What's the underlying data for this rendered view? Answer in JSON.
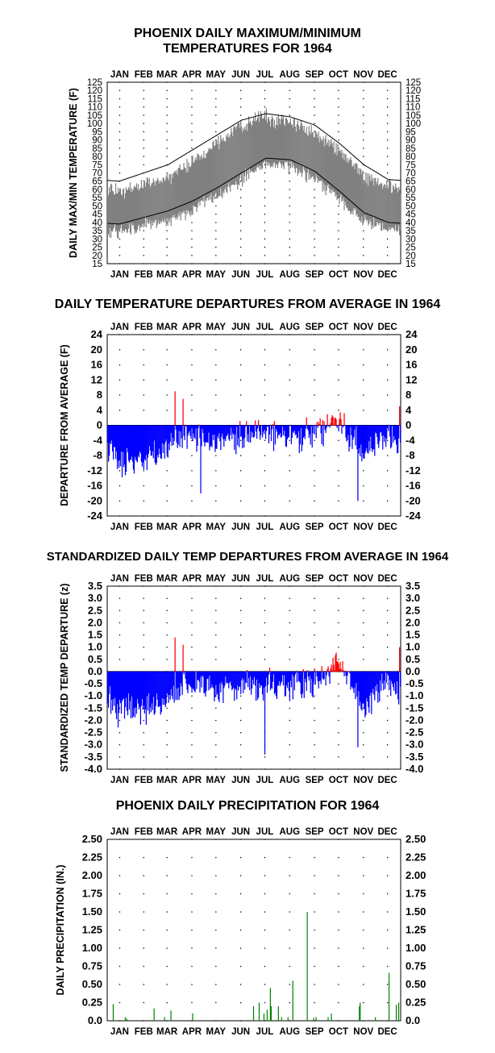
{
  "chart_data": [
    {
      "type": "area",
      "title": "PHOENIX DAILY MAXIMUM/MINIMUM",
      "subtitle": "TEMPERATURES FOR 1964",
      "ylabel": "DAILY MAX/MIN TEMPERATURE (F)",
      "months": [
        "JAN",
        "FEB",
        "MAR",
        "APR",
        "MAY",
        "JUN",
        "JUL",
        "AUG",
        "SEP",
        "OCT",
        "NOV",
        "DEC"
      ],
      "ylim": [
        15,
        125
      ],
      "yticks": [
        "15",
        "20",
        "25",
        "30",
        "35",
        "40",
        "45",
        "50",
        "55",
        "60",
        "65",
        "70",
        "75",
        "80",
        "85",
        "90",
        "95",
        "100",
        "105",
        "110",
        "115",
        "120",
        "125"
      ],
      "grid": "dotted",
      "normal_max_monthly": [
        65,
        70,
        75,
        84,
        93,
        102,
        106,
        104,
        99,
        88,
        75,
        66
      ],
      "normal_min_monthly": [
        39,
        43,
        47,
        53,
        61,
        70,
        79,
        78,
        71,
        59,
        46,
        40
      ],
      "actual_max_monthly": [
        58,
        63,
        67,
        77,
        87,
        100,
        104,
        101,
        94,
        84,
        68,
        62
      ],
      "actual_min_monthly": [
        34,
        38,
        41,
        48,
        56,
        66,
        76,
        74,
        67,
        54,
        40,
        36
      ],
      "series_colors": {
        "range": "#808080",
        "normal": "#000000"
      }
    },
    {
      "type": "bar",
      "title": "DAILY TEMPERATURE DEPARTURES FROM AVERAGE IN 1964",
      "ylabel": "DEPARTURE FROM AVERAGE (F)",
      "months": [
        "JAN",
        "FEB",
        "MAR",
        "APR",
        "MAY",
        "JUN",
        "JUL",
        "AUG",
        "SEP",
        "OCT",
        "NOV",
        "DEC"
      ],
      "ylim": [
        -24,
        24
      ],
      "yticks": [
        "-24",
        "-20",
        "-16",
        "-12",
        "-8",
        "-4",
        "0",
        "4",
        "8",
        "12",
        "16",
        "20",
        "24"
      ],
      "monthly_mean": [
        -9,
        -9,
        -6,
        -3,
        -5,
        -3,
        -2,
        -3,
        -2,
        1,
        -8,
        -2
      ],
      "extremes": [
        {
          "day": 85,
          "value": 9
        },
        {
          "day": 95,
          "value": 7
        },
        {
          "day": 117,
          "value": -18
        },
        {
          "day": 313,
          "value": -20
        },
        {
          "day": 365,
          "value": 5
        }
      ],
      "colors": {
        "positive": "#ff0000",
        "negative": "#0000ff"
      }
    },
    {
      "type": "bar",
      "title": "STANDARDIZED DAILY TEMP DEPARTURES FROM AVERAGE IN 1964",
      "ylabel": "STANDARDIZED TEMP DEPARTURE (z)",
      "months": [
        "JAN",
        "FEB",
        "MAR",
        "APR",
        "MAY",
        "JUN",
        "JUL",
        "AUG",
        "SEP",
        "OCT",
        "NOV",
        "DEC"
      ],
      "ylim": [
        -4.0,
        3.5
      ],
      "yticks": [
        "-4.0",
        "-3.5",
        "-3.0",
        "-2.5",
        "-2.0",
        "-1.5",
        "-1.0",
        "-0.5",
        "0.0",
        "0.5",
        "1.0",
        "1.5",
        "2.0",
        "2.5",
        "3.0",
        "3.5"
      ],
      "monthly_mean": [
        -1.6,
        -1.5,
        -1.0,
        -0.6,
        -0.8,
        -0.6,
        -0.6,
        -0.6,
        -0.4,
        0.2,
        -1.5,
        -0.4
      ],
      "extremes": [
        {
          "day": 85,
          "value": 1.4
        },
        {
          "day": 95,
          "value": 1.1
        },
        {
          "day": 197,
          "value": -3.4
        },
        {
          "day": 313,
          "value": -3.1
        },
        {
          "day": 365,
          "value": 1.0
        }
      ],
      "colors": {
        "positive": "#ff0000",
        "negative": "#0000ff"
      }
    },
    {
      "type": "bar",
      "title": "PHOENIX DAILY PRECIPITATION FOR 1964",
      "ylabel": "DAILY PRECIPITATION (IN.)",
      "months": [
        "JAN",
        "FEB",
        "MAR",
        "APR",
        "MAY",
        "JUN",
        "JUL",
        "AUG",
        "SEP",
        "OCT",
        "NOV",
        "DEC"
      ],
      "ylim": [
        0,
        2.5
      ],
      "yticks": [
        "0.0",
        "0.25",
        "0.50",
        "0.75",
        "1.00",
        "1.25",
        "1.50",
        "1.75",
        "2.00",
        "2.25",
        "2.50"
      ],
      "days": [
        8,
        23,
        25,
        59,
        72,
        80,
        107,
        183,
        190,
        196,
        200,
        204,
        205,
        214,
        218,
        226,
        232,
        250,
        258,
        261,
        276,
        280,
        315,
        316,
        335,
        352,
        361,
        364
      ],
      "values": [
        0.23,
        0.05,
        0.03,
        0.17,
        0.05,
        0.14,
        0.1,
        0.2,
        0.25,
        0.1,
        0.15,
        0.45,
        0.2,
        0.2,
        0.05,
        0.05,
        0.55,
        1.5,
        0.04,
        0.05,
        0.05,
        0.1,
        0.2,
        0.25,
        0.05,
        0.66,
        0.22,
        0.25
      ],
      "bar_color": "#008000"
    }
  ]
}
